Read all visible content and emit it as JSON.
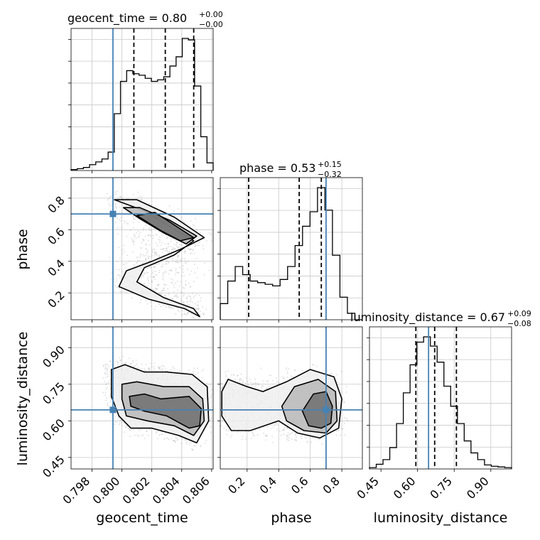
{
  "chart_data": {
    "type": "corner",
    "parameters": [
      {
        "name": "geocent_time",
        "title": "geocent_time = 0.80",
        "title_plus": "+0.00",
        "title_minus": "−0.00",
        "truth": 0.7994,
        "quantiles": [
          0.8008,
          0.8029,
          0.8048
        ],
        "range": [
          0.7966,
          0.8061
        ],
        "ticks": [
          0.798,
          0.8,
          0.802,
          0.804,
          0.806
        ],
        "tick_labels": [
          "0.798",
          "0.800",
          "0.802",
          "0.804",
          "0.806"
        ],
        "hist_bins": [
          0.006,
          0.012,
          0.02,
          0.038,
          0.056,
          0.075,
          0.12,
          0.37,
          0.58,
          0.65,
          0.63,
          0.62,
          0.6,
          0.58,
          0.59,
          0.61,
          0.68,
          0.74,
          0.86,
          0.85,
          0.55,
          0.22,
          0.05
        ]
      },
      {
        "name": "phase",
        "title": "phase = 0.53",
        "title_plus": "+0.15",
        "title_minus": "−0.32",
        "truth": 0.7,
        "quantiles": [
          0.21,
          0.53,
          0.67
        ],
        "range": [
          0.03,
          0.93
        ],
        "ticks": [
          0.2,
          0.4,
          0.6,
          0.8
        ],
        "tick_labels": [
          "0.2",
          "0.4",
          "0.6",
          "0.8"
        ],
        "hist_bins": [
          0.1,
          0.24,
          0.33,
          0.28,
          0.24,
          0.23,
          0.22,
          0.21,
          0.25,
          0.33,
          0.46,
          0.58,
          0.67,
          0.82,
          0.68,
          0.4,
          0.14,
          0.04,
          0.0
        ]
      },
      {
        "name": "luminosity_distance",
        "title": "luminosity_distance = 0.67",
        "title_plus": "+0.09",
        "title_minus": "−0.08",
        "truth": 0.645,
        "quantiles": [
          0.593,
          0.67,
          0.759
        ],
        "range": [
          0.403,
          0.985
        ],
        "ticks": [
          0.45,
          0.6,
          0.75,
          0.9
        ],
        "tick_labels": [
          "0.45",
          "0.60",
          "0.75",
          "0.90"
        ],
        "hist_bins": [
          0.01,
          0.035,
          0.07,
          0.16,
          0.34,
          0.57,
          0.78,
          0.95,
          0.99,
          0.92,
          0.8,
          0.62,
          0.47,
          0.34,
          0.21,
          0.12,
          0.07,
          0.03,
          0.02,
          0.015,
          0.01
        ]
      }
    ],
    "joint": {
      "phase_vs_geocent_time": {
        "x": "geocent_time",
        "y": "phase",
        "truth_point": [
          0.7994,
          0.7
        ],
        "contours": [
          [
            [
              0.7995,
              0.79
            ],
            [
              0.801,
              0.79
            ],
            [
              0.8035,
              0.68
            ],
            [
              0.8055,
              0.55
            ],
            [
              0.804,
              0.48
            ],
            [
              0.802,
              0.4
            ],
            [
              0.8003,
              0.34
            ],
            [
              0.7998,
              0.24
            ],
            [
              0.8018,
              0.16
            ],
            [
              0.8042,
              0.1
            ],
            [
              0.8052,
              0.05
            ],
            [
              0.8048,
              0.1
            ],
            [
              0.8028,
              0.17
            ],
            [
              0.801,
              0.27
            ],
            [
              0.8015,
              0.36
            ],
            [
              0.8035,
              0.44
            ],
            [
              0.8048,
              0.53
            ],
            [
              0.8032,
              0.62
            ],
            [
              0.8015,
              0.72
            ],
            [
              0.7995,
              0.79
            ]
          ],
          [
            [
              0.8001,
              0.74
            ],
            [
              0.8012,
              0.74
            ],
            [
              0.8032,
              0.66
            ],
            [
              0.805,
              0.56
            ],
            [
              0.8043,
              0.51
            ],
            [
              0.8028,
              0.58
            ],
            [
              0.8012,
              0.67
            ],
            [
              0.8001,
              0.74
            ]
          ],
          [
            [
              0.801,
              0.69
            ],
            [
              0.8022,
              0.71
            ],
            [
              0.8048,
              0.55
            ],
            [
              0.8039,
              0.53
            ],
            [
              0.8025,
              0.6
            ],
            [
              0.801,
              0.69
            ]
          ]
        ]
      },
      "luminosity_distance_vs_geocent_time": {
        "x": "geocent_time",
        "y": "luminosity_distance",
        "truth_point": [
          0.7994,
          0.645
        ],
        "contours": [
          [
            [
              0.7993,
              0.81
            ],
            [
              0.8002,
              0.83
            ],
            [
              0.8015,
              0.8
            ],
            [
              0.803,
              0.8
            ],
            [
              0.8047,
              0.79
            ],
            [
              0.8057,
              0.74
            ],
            [
              0.8058,
              0.6
            ],
            [
              0.805,
              0.51
            ],
            [
              0.8038,
              0.54
            ],
            [
              0.802,
              0.57
            ],
            [
              0.8006,
              0.57
            ],
            [
              0.7998,
              0.62
            ],
            [
              0.7993,
              0.7
            ],
            [
              0.7993,
              0.81
            ]
          ],
          [
            [
              0.8,
              0.75
            ],
            [
              0.801,
              0.76
            ],
            [
              0.8028,
              0.74
            ],
            [
              0.8045,
              0.74
            ],
            [
              0.8054,
              0.69
            ],
            [
              0.8055,
              0.6
            ],
            [
              0.8048,
              0.54
            ],
            [
              0.8035,
              0.58
            ],
            [
              0.8017,
              0.6
            ],
            [
              0.8003,
              0.62
            ],
            [
              0.8,
              0.69
            ],
            [
              0.8,
              0.75
            ]
          ],
          [
            [
              0.8005,
              0.7
            ],
            [
              0.8015,
              0.71
            ],
            [
              0.8026,
              0.69
            ],
            [
              0.8045,
              0.7
            ],
            [
              0.8053,
              0.65
            ],
            [
              0.8052,
              0.58
            ],
            [
              0.8045,
              0.57
            ],
            [
              0.803,
              0.62
            ],
            [
              0.8015,
              0.64
            ],
            [
              0.8006,
              0.66
            ],
            [
              0.8005,
              0.7
            ]
          ]
        ]
      },
      "luminosity_distance_vs_phase": {
        "x": "phase",
        "y": "luminosity_distance",
        "truth_point": [
          0.7,
          0.645
        ],
        "contours": [
          [
            [
              0.04,
              0.72
            ],
            [
              0.08,
              0.77
            ],
            [
              0.2,
              0.74
            ],
            [
              0.3,
              0.72
            ],
            [
              0.45,
              0.76
            ],
            [
              0.6,
              0.81
            ],
            [
              0.75,
              0.78
            ],
            [
              0.8,
              0.69
            ],
            [
              0.78,
              0.57
            ],
            [
              0.66,
              0.53
            ],
            [
              0.52,
              0.55
            ],
            [
              0.4,
              0.6
            ],
            [
              0.22,
              0.56
            ],
            [
              0.1,
              0.56
            ],
            [
              0.04,
              0.62
            ],
            [
              0.04,
              0.72
            ]
          ],
          [
            [
              0.42,
              0.66
            ],
            [
              0.5,
              0.74
            ],
            [
              0.65,
              0.77
            ],
            [
              0.76,
              0.72
            ],
            [
              0.77,
              0.6
            ],
            [
              0.7,
              0.55
            ],
            [
              0.56,
              0.56
            ],
            [
              0.45,
              0.6
            ],
            [
              0.42,
              0.66
            ]
          ],
          [
            [
              0.55,
              0.64
            ],
            [
              0.62,
              0.71
            ],
            [
              0.7,
              0.72
            ],
            [
              0.74,
              0.66
            ],
            [
              0.73,
              0.59
            ],
            [
              0.67,
              0.57
            ],
            [
              0.59,
              0.58
            ],
            [
              0.55,
              0.64
            ]
          ]
        ]
      }
    },
    "truth_color": "#4682b4",
    "quantile_color": "#000000",
    "grid": true
  }
}
